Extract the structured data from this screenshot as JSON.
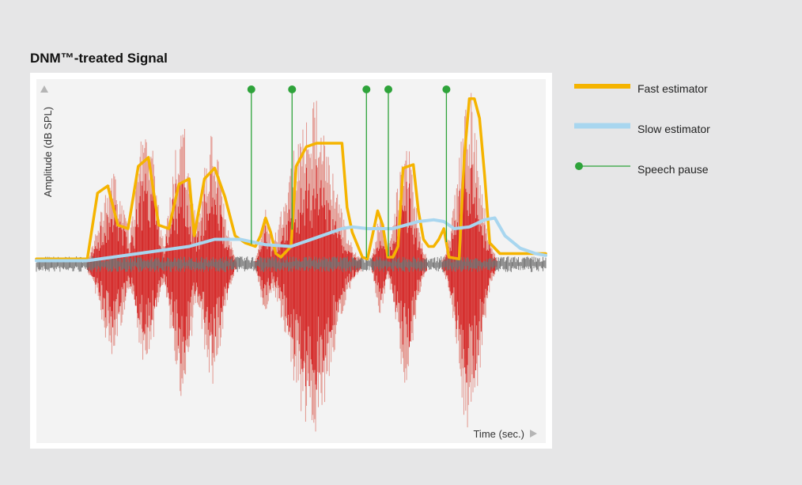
{
  "title": "DNM™-treated Signal",
  "chart_data": {
    "type": "line",
    "ylabel": "Amplitude (dB SPL)",
    "xlabel": "Time (sec.)",
    "x_range": [
      0,
      100
    ],
    "y_range": [
      -1,
      1
    ],
    "grid": false,
    "legend_position": "right",
    "colors": {
      "fast": "#f5b400",
      "slow": "#a8d6ef",
      "pause": "#2ea33a",
      "waveform_light": "#e3968e",
      "waveform_dark": "#d42424",
      "noise": "#6f6f6f"
    },
    "speech_segments": [
      {
        "center": 15,
        "width": 3.2,
        "up": 0.52,
        "down": 0.52
      },
      {
        "center": 21.5,
        "width": 2.6,
        "up": 0.85,
        "down": 0.62
      },
      {
        "center": 28.5,
        "width": 2.6,
        "up": 0.82,
        "down": 0.78
      },
      {
        "center": 34.5,
        "width": 2.8,
        "up": 0.75,
        "down": 0.7
      },
      {
        "center": 45,
        "width": 1.4,
        "up": 0.32,
        "down": 0.3
      },
      {
        "center": 54,
        "width": 5.5,
        "up": 0.96,
        "down": 1.0
      },
      {
        "center": 67.5,
        "width": 1.2,
        "up": 0.3,
        "down": 0.3
      },
      {
        "center": 72.5,
        "width": 2.5,
        "up": 0.7,
        "down": 0.7
      },
      {
        "center": 85,
        "width": 3.0,
        "up": 0.98,
        "down": 1.0
      }
    ],
    "series": [
      {
        "name": "Fast estimator",
        "x": [
          0,
          10,
          12,
          14,
          16,
          18,
          20,
          22,
          24,
          26,
          28,
          30,
          31,
          33,
          35,
          37,
          39,
          41,
          43,
          44,
          45,
          46,
          47,
          48,
          50,
          51,
          53,
          55,
          58,
          60,
          61,
          62,
          64,
          65,
          67,
          68,
          69,
          70,
          71,
          72,
          74,
          75,
          76,
          77,
          78,
          79,
          80,
          81,
          83,
          84,
          85,
          86,
          87,
          88,
          89,
          91,
          92,
          100
        ],
        "y": [
          0.03,
          0.03,
          0.4,
          0.44,
          0.22,
          0.2,
          0.55,
          0.6,
          0.22,
          0.2,
          0.45,
          0.48,
          0.16,
          0.48,
          0.54,
          0.38,
          0.16,
          0.12,
          0.1,
          0.16,
          0.26,
          0.18,
          0.06,
          0.04,
          0.1,
          0.55,
          0.66,
          0.68,
          0.68,
          0.68,
          0.32,
          0.18,
          0.04,
          0.03,
          0.3,
          0.22,
          0.04,
          0.04,
          0.1,
          0.54,
          0.56,
          0.3,
          0.14,
          0.1,
          0.1,
          0.14,
          0.2,
          0.04,
          0.03,
          0.6,
          0.93,
          0.93,
          0.82,
          0.5,
          0.12,
          0.06,
          0.06,
          0.06
        ],
        "style": {
          "color": "#f5b400",
          "width": 3.5
        }
      },
      {
        "name": "Slow estimator",
        "x": [
          0,
          10,
          15,
          20,
          25,
          30,
          35,
          40,
          45,
          50,
          55,
          60,
          62,
          65,
          70,
          75,
          78,
          80,
          82,
          85,
          88,
          90,
          92,
          95,
          98,
          100
        ],
        "y": [
          0.02,
          0.02,
          0.04,
          0.06,
          0.08,
          0.1,
          0.14,
          0.14,
          0.11,
          0.1,
          0.15,
          0.2,
          0.21,
          0.2,
          0.2,
          0.24,
          0.25,
          0.24,
          0.2,
          0.21,
          0.25,
          0.26,
          0.16,
          0.09,
          0.06,
          0.05
        ],
        "style": {
          "color": "#a8d6ef",
          "width": 4
        }
      }
    ],
    "speech_pauses": [
      42.2,
      50.2,
      64.8,
      69.1,
      80.5
    ]
  },
  "legend": [
    {
      "label": "Fast estimator",
      "type": "line",
      "color": "#f5b400"
    },
    {
      "label": "Slow estimator",
      "type": "line",
      "color": "#a8d6ef"
    },
    {
      "label": "Speech pause",
      "type": "marker-line",
      "color": "#2ea33a"
    }
  ]
}
